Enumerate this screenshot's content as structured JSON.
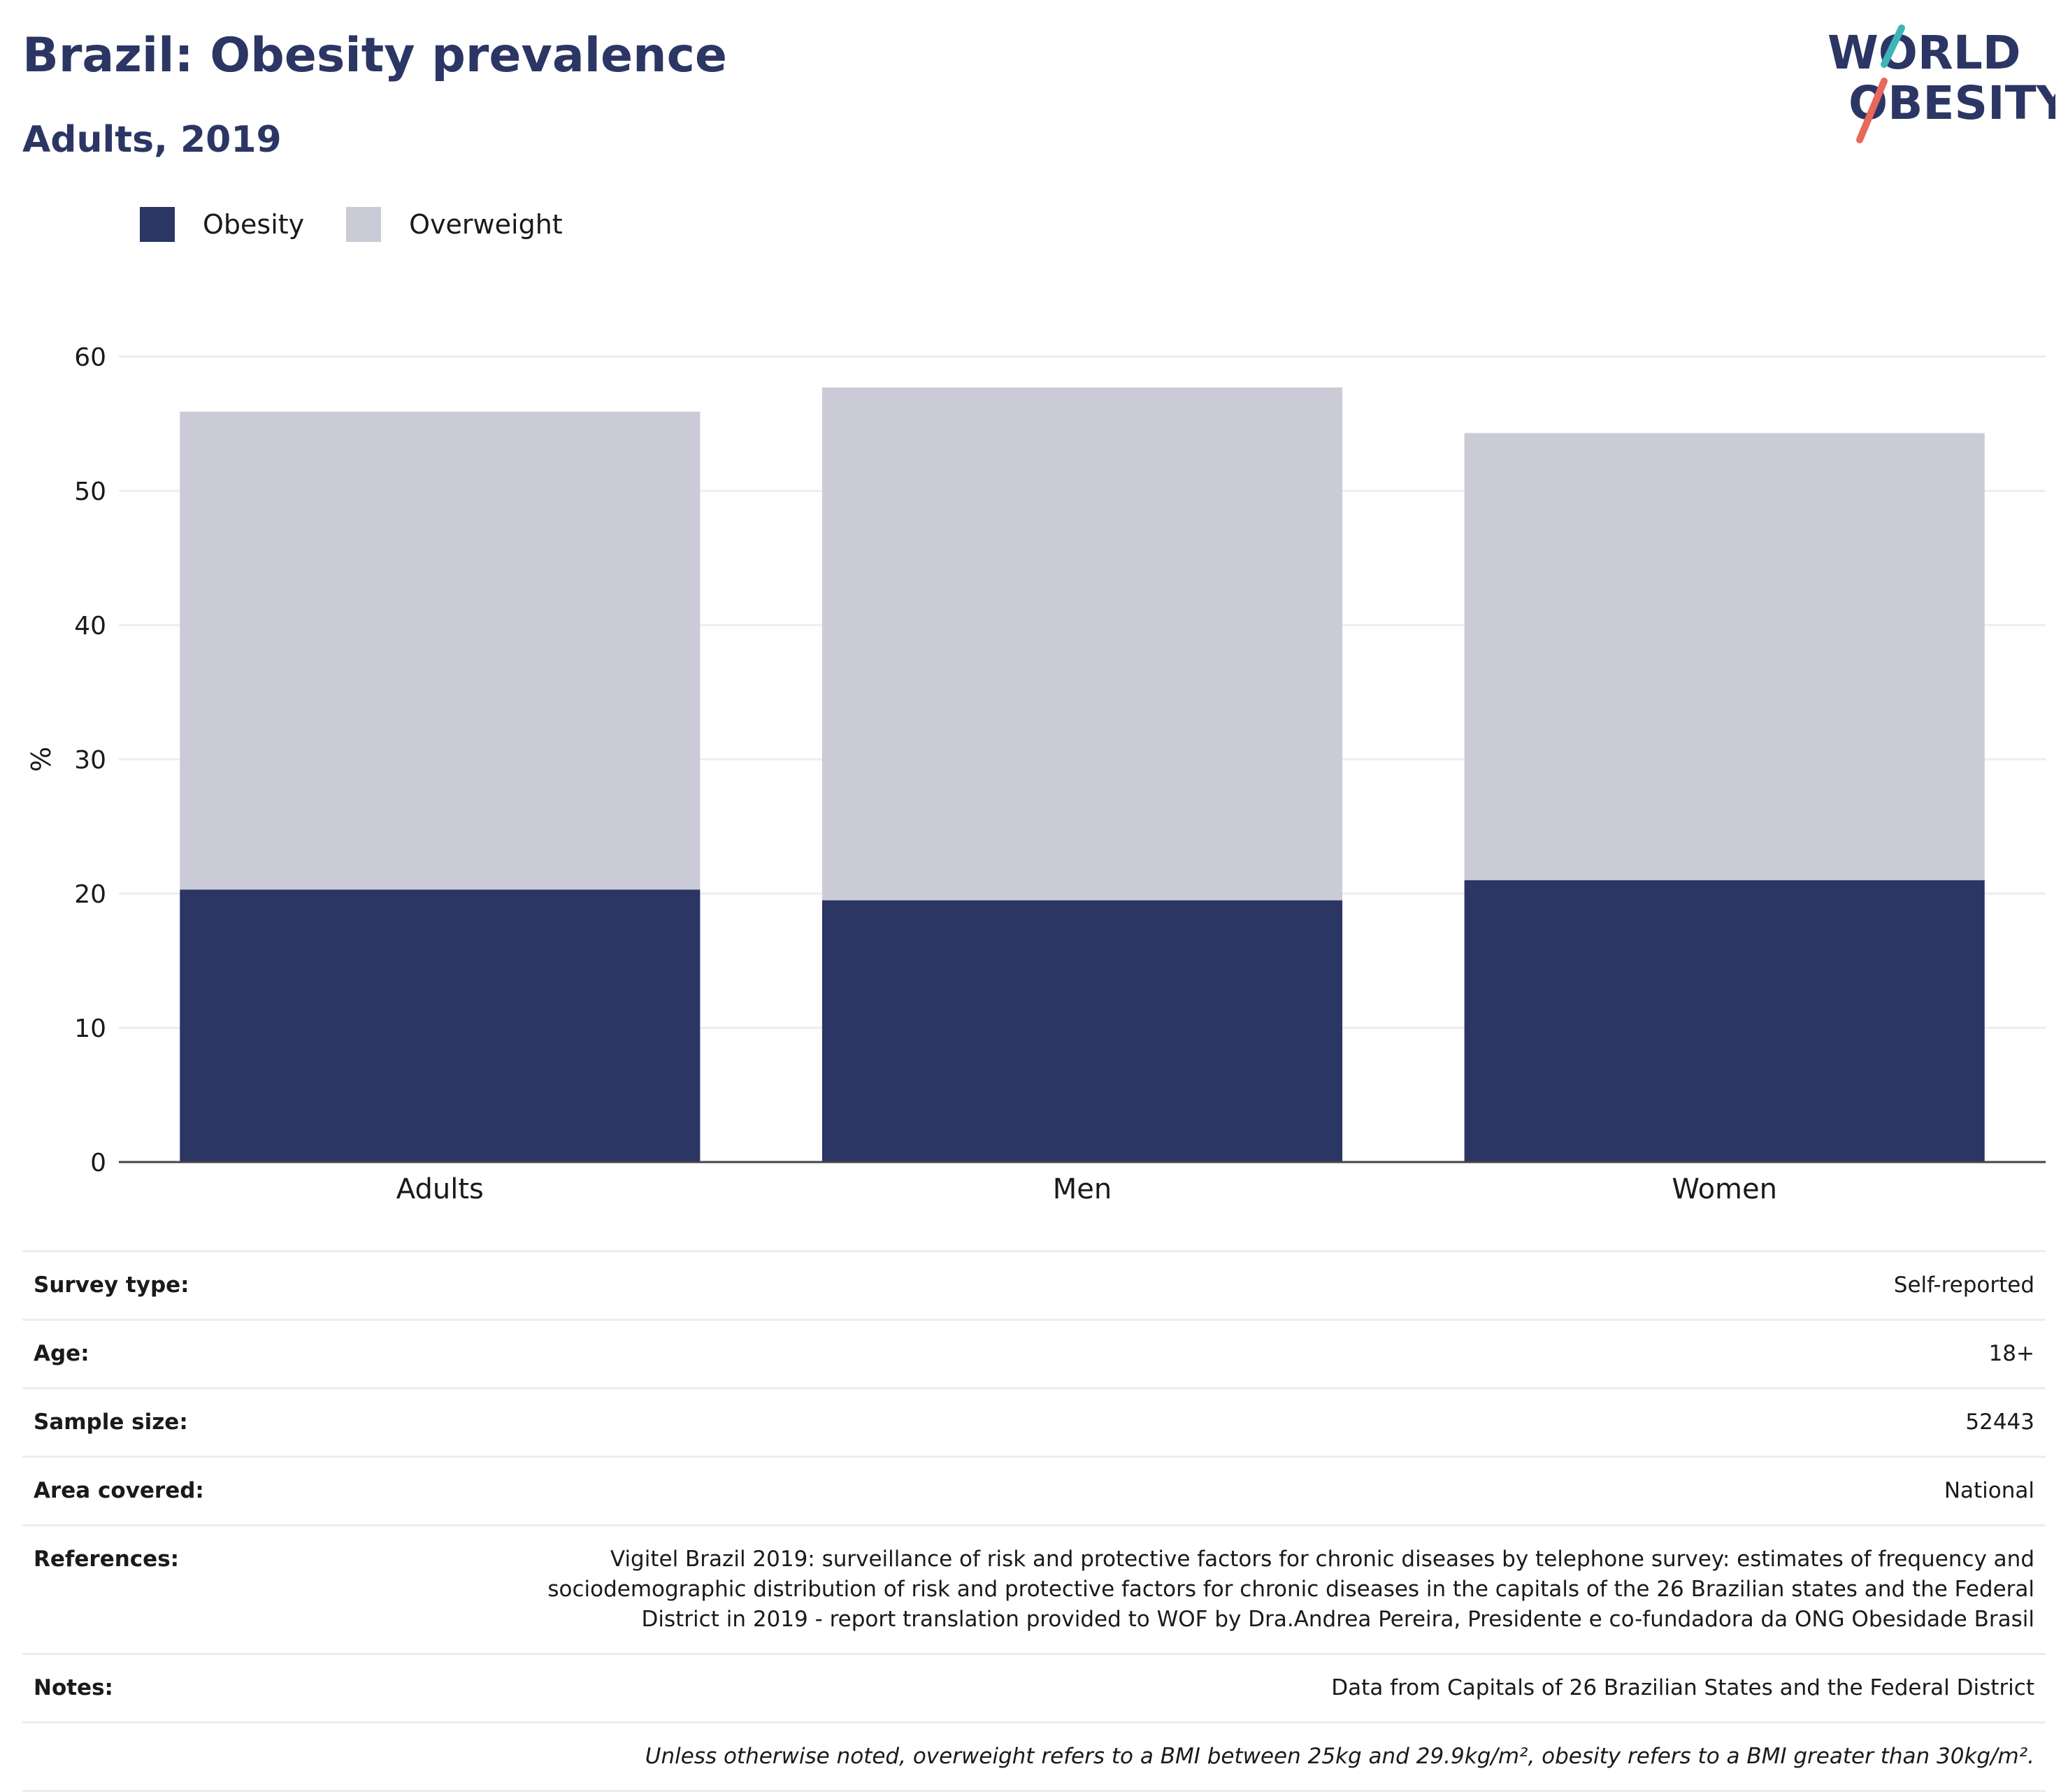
{
  "header": {
    "title": "Brazil: Obesity prevalence",
    "subtitle": "Adults, 2019"
  },
  "logo": {
    "line1": "WORLD",
    "line2": "OBESITY",
    "accent_teal": "#3bb5b8",
    "accent_red": "#e8685a"
  },
  "legend": {
    "items": [
      {
        "label": "Obesity",
        "color": "#2b3664"
      },
      {
        "label": "Overweight",
        "color": "#cacbd6"
      }
    ]
  },
  "chart_data": {
    "type": "bar",
    "stacked": true,
    "categories": [
      "Adults",
      "Men",
      "Women"
    ],
    "series": [
      {
        "name": "Obesity",
        "values": [
          20.3,
          19.5,
          21.0
        ],
        "color": "#2b3664"
      },
      {
        "name": "Overweight",
        "values": [
          35.6,
          38.2,
          33.3
        ],
        "color": "#cacbd6"
      }
    ],
    "ylabel": "%",
    "ylim": [
      0,
      60
    ],
    "yticks": [
      0,
      10,
      20,
      30,
      40,
      50,
      60
    ],
    "grid": true
  },
  "info": {
    "rows": [
      {
        "key": "Survey type:",
        "value": "Self-reported"
      },
      {
        "key": "Age:",
        "value": "18+"
      },
      {
        "key": "Sample size:",
        "value": "52443"
      },
      {
        "key": "Area covered:",
        "value": "National"
      },
      {
        "key": "References:",
        "value": "Vigitel Brazil 2019: surveillance of risk and protective factors for chronic diseases by telephone survey: estimates of frequency and sociodemographic distribution of risk and protective factors for chronic diseases in the capitals of the 26 Brazilian states and the Federal District in 2019 - report translation provided to WOF by Dra.Andrea Pereira, Presidente e co-fundadora da ONG Obesidade Brasil"
      },
      {
        "key": "Notes:",
        "value": "Data from Capitals of 26 Brazilian States and the Federal District"
      }
    ],
    "footnote": "Unless otherwise noted, overweight refers to a BMI between 25kg and 29.9kg/m², obesity refers to a BMI greater than 30kg/m²."
  }
}
